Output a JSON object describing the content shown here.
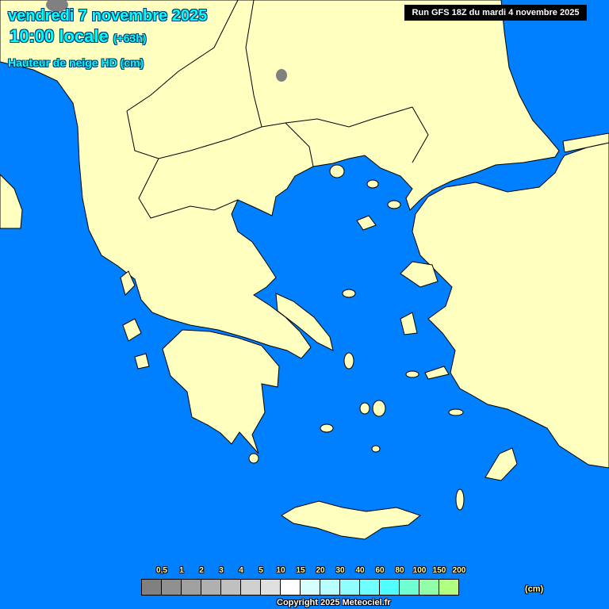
{
  "header": {
    "date": "vendredi 7 novembre 2025",
    "hour": "10:00 locale",
    "offset": "(+63h)",
    "variable": "Hauteur de neige HD (cm)",
    "run": "Run GFS 18Z du mardi 4 novembre 2025"
  },
  "map": {
    "sea_color": "#0080ff",
    "land_color": "#ffffc0",
    "border_color": "#000000",
    "snow_patch_color": "#808080"
  },
  "legend": {
    "labels": [
      "0,5",
      "1",
      "2",
      "3",
      "4",
      "5",
      "10",
      "15",
      "20",
      "30",
      "40",
      "60",
      "80",
      "100",
      "150",
      "200"
    ],
    "colors": [
      "#808080",
      "#909090",
      "#a0a0a0",
      "#b0b0b0",
      "#c0c0c0",
      "#d0d0d0",
      "#e0e0e0",
      "#ffffff",
      "#d8ffff",
      "#b8ffff",
      "#90ffff",
      "#70ffff",
      "#50ffff",
      "#70ffd0",
      "#90ffa8",
      "#b0ff80"
    ],
    "unit": "(cm)"
  },
  "copyright": "Copyright 2025 Meteociel.fr"
}
